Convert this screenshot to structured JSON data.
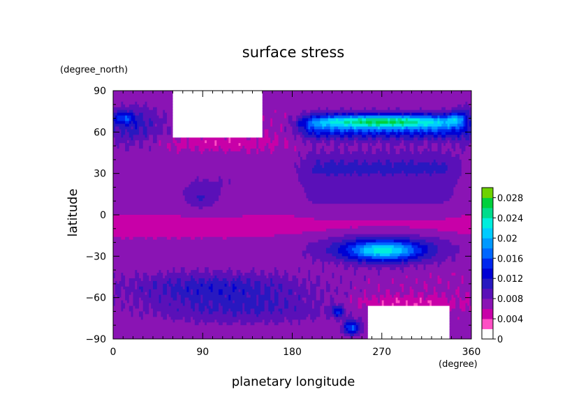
{
  "chart_data": {
    "type": "heatmap",
    "title": "surface stress",
    "xlabel": "planetary longitude",
    "ylabel": "latitude",
    "x_units": "(degree)",
    "y_units": "(degree_north)",
    "xlim": [
      0,
      360
    ],
    "ylim": [
      -90,
      90
    ],
    "x_ticks": [
      "0",
      "90",
      "180",
      "270",
      "360"
    ],
    "y_ticks": [
      "90",
      "60",
      "30",
      "0",
      "−30",
      "−60",
      "−90"
    ],
    "colorbar": {
      "min": 0,
      "max": 0.03,
      "step": 0.002,
      "labels": [
        "0.028",
        "0.024",
        "0.02",
        "0.016",
        "0.012",
        "0.008",
        "0.004",
        "0"
      ],
      "colors": [
        "#ffffff",
        "#ff4fc4",
        "#c800a8",
        "#8a14b4",
        "#5a10b8",
        "#2818c0",
        "#0000d4",
        "#0026ee",
        "#0066ff",
        "#0099ff",
        "#00ccff",
        "#00eedd",
        "#00dc8c",
        "#00d03c",
        "#6ed200",
        "#d2e600",
        "#fff000",
        "#ffc400",
        "#ff8c00",
        "#ff4400",
        "#e8505a"
      ]
    },
    "grid": false,
    "legend": "colorbar-right"
  }
}
